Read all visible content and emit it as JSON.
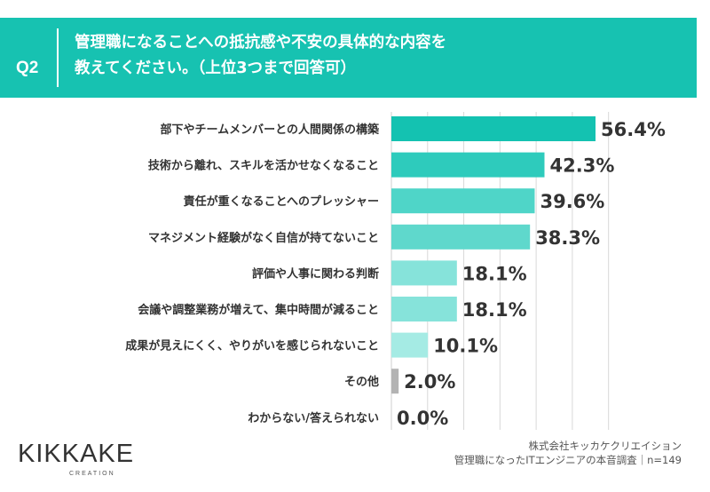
{
  "header": {
    "q_label": "Q2",
    "question_line1": "管理職になることへの抵抗感や不安の具体的な内容を",
    "question_line2": "教えてください。（上位3つまで回答可）"
  },
  "chart_data": {
    "type": "bar",
    "orientation": "horizontal",
    "categories": [
      "部下やチームメンバーとの人間関係の構築",
      "技術から離れ、スキルを活かせなくなること",
      "責任が重くなることへのプレッシャー",
      "マネジメント経験がなく自信が持てないこと",
      "評価や人事に関わる判断",
      "会議や調整業務が増えて、集中時間が減ること",
      "成果が見えにくく、やりがいを感じられないこと",
      "その他",
      "わからない/答えられない"
    ],
    "values": [
      56.4,
      42.3,
      39.6,
      38.3,
      18.1,
      18.1,
      10.1,
      2.0,
      0.0
    ],
    "value_labels": [
      "56.4%",
      "42.3%",
      "39.6%",
      "38.3%",
      "18.1%",
      "18.1%",
      "10.1%",
      "2.0%",
      "0.0%"
    ],
    "xlim": [
      0,
      60
    ],
    "grid": true,
    "colors": [
      "#14c2b1",
      "#2ecbbc",
      "#4fd5c8",
      "#5fd8cc",
      "#86e3da",
      "#86e3da",
      "#a5ebe4",
      "#b3b3b3",
      "#b3b3b3"
    ]
  },
  "logo": {
    "name": "KIKKAKE",
    "sub": "CREATION"
  },
  "footer": {
    "line1": "株式会社キッカケクリエイション",
    "line2": "管理職になったITエンジニアの本音調査｜n=149"
  }
}
